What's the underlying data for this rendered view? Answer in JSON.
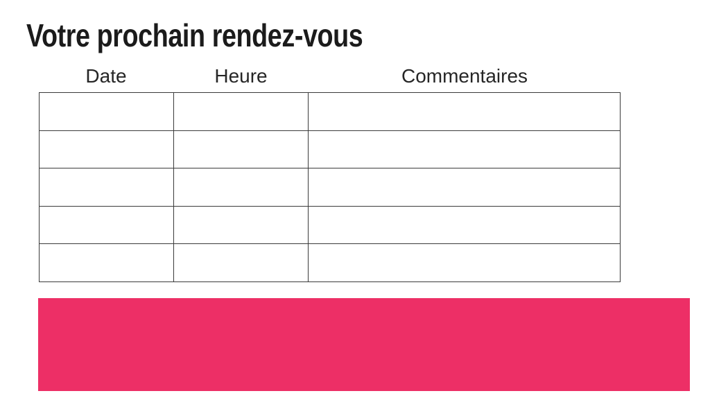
{
  "title": "Votre prochain rendez-vous",
  "table": {
    "headers": [
      "Date",
      "Heure",
      "Commentaires"
    ],
    "rows": [
      [
        "",
        "",
        ""
      ],
      [
        "",
        "",
        ""
      ],
      [
        "",
        "",
        ""
      ],
      [
        "",
        "",
        ""
      ],
      [
        "",
        "",
        ""
      ]
    ]
  },
  "banner": {
    "color": "#ED2F66"
  },
  "colors": {
    "border": "#3A3A3A",
    "title_text": "#1B1B1B",
    "header_text": "#262626",
    "background": "#FFFFFF"
  }
}
